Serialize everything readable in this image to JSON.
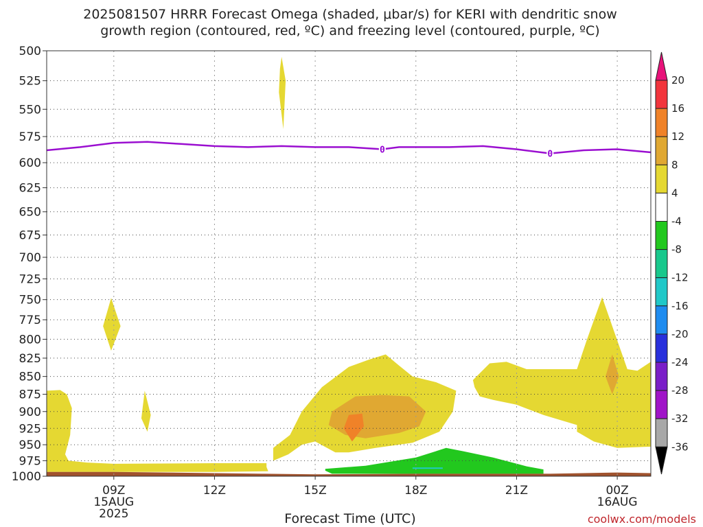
{
  "title": {
    "line1": "2025081507 HRRR Forecast Omega (shaded, μbar/s) for KERI with dendritic snow",
    "line2": "growth region (contoured, red, ºC) and freezing level (contoured, purple, ºC)"
  },
  "credit": "coolwx.com/models",
  "colors": {
    "freezing_level": "#9a0ed0",
    "surface": "#a0522d",
    "omega_4_8": "#e5d832",
    "omega_8_12": "#e0a832",
    "omega_12_16": "#f08228",
    "omega_neg_4_8": "#22c81e",
    "omega_neg_12_16": "#20c8c8"
  },
  "chart_data": {
    "type": "heatmap",
    "title": "2025081507 HRRR Forecast Omega (shaded, μbar/s) for KERI with dendritic snow growth region (contoured, red, ºC) and freezing level (contoured, purple, ºC)",
    "xlabel": "Forecast Time (UTC)",
    "ylabel": "",
    "y_axis": {
      "scale": "pressure (hPa), decreasing upward",
      "ylim": [
        1000,
        500
      ],
      "tick_labels": [
        "500",
        "525",
        "550",
        "575",
        "600",
        "625",
        "650",
        "675",
        "700",
        "725",
        "750",
        "775",
        "800",
        "825",
        "850",
        "875",
        "900",
        "925",
        "950",
        "975",
        "1000"
      ]
    },
    "x_axis": {
      "xlim": [
        "07Z 15AUG",
        "01Z 16AUG"
      ],
      "ticks": [
        {
          "hour": 9,
          "label": "09Z",
          "sublabel1": "15AUG",
          "sublabel2": "2025"
        },
        {
          "hour": 12,
          "label": "12Z",
          "sublabel1": "",
          "sublabel2": ""
        },
        {
          "hour": 15,
          "label": "15Z",
          "sublabel1": "",
          "sublabel2": ""
        },
        {
          "hour": 18,
          "label": "18Z",
          "sublabel1": "",
          "sublabel2": ""
        },
        {
          "hour": 21,
          "label": "21Z",
          "sublabel1": "",
          "sublabel2": ""
        },
        {
          "hour": 24,
          "label": "00Z",
          "sublabel1": "16AUG",
          "sublabel2": ""
        }
      ]
    },
    "grid": true,
    "colorbar": {
      "position": "right",
      "labels": [
        "20",
        "16",
        "12",
        "8",
        "4",
        "-4",
        "-8",
        "-12",
        "-16",
        "-20",
        "-24",
        "-28",
        "-32",
        "-36"
      ],
      "bins": [
        {
          "color": "#e8127a"
        },
        {
          "color": "#f2353c"
        },
        {
          "color": "#f08228"
        },
        {
          "color": "#e0a832"
        },
        {
          "color": "#e5d832"
        },
        {
          "color": "#ffffff"
        },
        {
          "color": "#22c81e"
        },
        {
          "color": "#18c88c"
        },
        {
          "color": "#20c8c8"
        },
        {
          "color": "#1e8cf0"
        },
        {
          "color": "#2830dc"
        },
        {
          "color": "#7a1ec8"
        },
        {
          "color": "#a014c8"
        },
        {
          "color": "#a8a8a8"
        },
        {
          "color": "#000000"
        }
      ]
    },
    "freezing_level": {
      "contour_label": "0",
      "points": [
        {
          "hour": 7.0,
          "p": 588
        },
        {
          "hour": 8.0,
          "p": 585
        },
        {
          "hour": 9.0,
          "p": 581
        },
        {
          "hour": 10.0,
          "p": 580
        },
        {
          "hour": 11.0,
          "p": 582
        },
        {
          "hour": 12.0,
          "p": 584
        },
        {
          "hour": 13.0,
          "p": 585
        },
        {
          "hour": 14.0,
          "p": 584
        },
        {
          "hour": 15.0,
          "p": 585
        },
        {
          "hour": 16.0,
          "p": 585
        },
        {
          "hour": 17.0,
          "p": 587
        },
        {
          "hour": 17.5,
          "p": 585
        },
        {
          "hour": 18.0,
          "p": 585
        },
        {
          "hour": 19.0,
          "p": 585
        },
        {
          "hour": 20.0,
          "p": 584
        },
        {
          "hour": 21.0,
          "p": 587
        },
        {
          "hour": 22.0,
          "p": 591
        },
        {
          "hour": 23.0,
          "p": 588
        },
        {
          "hour": 24.0,
          "p": 587
        },
        {
          "hour": 25.0,
          "p": 590
        }
      ],
      "label_points": [
        {
          "hour": 17.0,
          "p": 587
        },
        {
          "hour": 22.0,
          "p": 591
        }
      ]
    },
    "surface": {
      "points": [
        {
          "hour": 7.0,
          "p": 993
        },
        {
          "hour": 9.0,
          "p": 993
        },
        {
          "hour": 12.0,
          "p": 995
        },
        {
          "hour": 13.5,
          "p": 996
        },
        {
          "hour": 15.0,
          "p": 997
        },
        {
          "hour": 18.0,
          "p": 996
        },
        {
          "hour": 22.0,
          "p": 996
        },
        {
          "hour": 24.0,
          "p": 994
        },
        {
          "hour": 25.0,
          "p": 995
        }
      ]
    },
    "omega_regions": [
      {
        "bin": "4 to 8",
        "color": "#e5d832",
        "points": [
          {
            "hour": 7.0,
            "p": 870
          },
          {
            "hour": 7.4,
            "p": 869
          },
          {
            "hour": 7.6,
            "p": 875
          },
          {
            "hour": 7.75,
            "p": 895
          },
          {
            "hour": 7.7,
            "p": 935
          },
          {
            "hour": 7.55,
            "p": 965
          },
          {
            "hour": 7.65,
            "p": 975
          },
          {
            "hour": 8.2,
            "p": 978
          },
          {
            "hour": 9.0,
            "p": 980
          },
          {
            "hour": 12.0,
            "p": 979
          },
          {
            "hour": 13.55,
            "p": 979
          },
          {
            "hour": 13.55,
            "p": 985
          },
          {
            "hour": 13.6,
            "p": 992
          },
          {
            "hour": 12.0,
            "p": 993
          },
          {
            "hour": 7.0,
            "p": 993
          }
        ]
      },
      {
        "bin": "4 to 8",
        "color": "#e5d832",
        "points": [
          {
            "hour": 14.0,
            "p": 505
          },
          {
            "hour": 14.12,
            "p": 525
          },
          {
            "hour": 14.05,
            "p": 568
          },
          {
            "hour": 13.92,
            "p": 535
          },
          {
            "hour": 13.95,
            "p": 515
          }
        ]
      },
      {
        "bin": "4 to 8",
        "color": "#e5d832",
        "points": [
          {
            "hour": 8.92,
            "p": 748
          },
          {
            "hour": 9.2,
            "p": 783
          },
          {
            "hour": 8.92,
            "p": 815
          },
          {
            "hour": 8.68,
            "p": 783
          }
        ]
      },
      {
        "bin": "4 to 8",
        "color": "#e5d832",
        "points": [
          {
            "hour": 9.92,
            "p": 870
          },
          {
            "hour": 10.1,
            "p": 905
          },
          {
            "hour": 10.0,
            "p": 930
          },
          {
            "hour": 9.82,
            "p": 910
          }
        ]
      },
      {
        "bin": "4 to 8",
        "color": "#e5d832",
        "points": [
          {
            "hour": 13.75,
            "p": 975
          },
          {
            "hour": 13.75,
            "p": 955
          },
          {
            "hour": 14.25,
            "p": 935
          },
          {
            "hour": 14.6,
            "p": 900
          },
          {
            "hour": 15.2,
            "p": 865
          },
          {
            "hour": 16.0,
            "p": 837
          },
          {
            "hour": 16.6,
            "p": 827
          },
          {
            "hour": 17.1,
            "p": 820
          },
          {
            "hour": 17.5,
            "p": 835
          },
          {
            "hour": 17.9,
            "p": 850
          },
          {
            "hour": 18.6,
            "p": 858
          },
          {
            "hour": 19.2,
            "p": 870
          },
          {
            "hour": 19.1,
            "p": 900
          },
          {
            "hour": 18.7,
            "p": 930
          },
          {
            "hour": 17.9,
            "p": 947
          },
          {
            "hour": 16.8,
            "p": 955
          },
          {
            "hour": 16.0,
            "p": 962
          },
          {
            "hour": 15.6,
            "p": 962
          },
          {
            "hour": 15.0,
            "p": 945
          },
          {
            "hour": 14.6,
            "p": 950
          },
          {
            "hour": 14.2,
            "p": 965
          }
        ]
      },
      {
        "bin": "4 to 8",
        "color": "#e5d832",
        "points": [
          {
            "hour": 19.7,
            "p": 855
          },
          {
            "hour": 20.2,
            "p": 832
          },
          {
            "hour": 20.7,
            "p": 830
          },
          {
            "hour": 21.3,
            "p": 840
          },
          {
            "hour": 22.2,
            "p": 840
          },
          {
            "hour": 22.8,
            "p": 840
          },
          {
            "hour": 23.1,
            "p": 800
          },
          {
            "hour": 23.55,
            "p": 747
          },
          {
            "hour": 23.85,
            "p": 783
          },
          {
            "hour": 24.3,
            "p": 840
          },
          {
            "hour": 24.6,
            "p": 842
          },
          {
            "hour": 25.0,
            "p": 830
          },
          {
            "hour": 25.0,
            "p": 953
          },
          {
            "hour": 24.0,
            "p": 955
          },
          {
            "hour": 23.3,
            "p": 945
          },
          {
            "hour": 22.8,
            "p": 930
          },
          {
            "hour": 22.8,
            "p": 920
          },
          {
            "hour": 21.8,
            "p": 905
          },
          {
            "hour": 21.0,
            "p": 890
          },
          {
            "hour": 20.3,
            "p": 883
          },
          {
            "hour": 19.9,
            "p": 878
          },
          {
            "hour": 19.75,
            "p": 865
          }
        ]
      },
      {
        "bin": "8 to 12",
        "color": "#e0a832",
        "points": [
          {
            "hour": 15.5,
            "p": 900
          },
          {
            "hour": 16.2,
            "p": 878
          },
          {
            "hour": 17.0,
            "p": 876
          },
          {
            "hour": 17.8,
            "p": 878
          },
          {
            "hour": 18.3,
            "p": 900
          },
          {
            "hour": 18.1,
            "p": 922
          },
          {
            "hour": 17.5,
            "p": 932
          },
          {
            "hour": 16.5,
            "p": 940
          },
          {
            "hour": 15.9,
            "p": 935
          },
          {
            "hour": 15.4,
            "p": 920
          }
        ]
      },
      {
        "bin": "8 to 12",
        "color": "#e0a832",
        "points": [
          {
            "hour": 23.85,
            "p": 820
          },
          {
            "hour": 24.05,
            "p": 850
          },
          {
            "hour": 23.85,
            "p": 875
          },
          {
            "hour": 23.65,
            "p": 850
          }
        ]
      },
      {
        "bin": "12 to 16",
        "color": "#f08228",
        "points": [
          {
            "hour": 16.0,
            "p": 905
          },
          {
            "hour": 16.4,
            "p": 903
          },
          {
            "hour": 16.45,
            "p": 922
          },
          {
            "hour": 16.1,
            "p": 945
          },
          {
            "hour": 15.85,
            "p": 925
          }
        ]
      },
      {
        "bin": "-4 to -8",
        "color": "#22c81e",
        "points": [
          {
            "hour": 15.3,
            "p": 988
          },
          {
            "hour": 16.5,
            "p": 983
          },
          {
            "hour": 18.0,
            "p": 970
          },
          {
            "hour": 18.9,
            "p": 955
          },
          {
            "hour": 19.4,
            "p": 960
          },
          {
            "hour": 20.3,
            "p": 970
          },
          {
            "hour": 21.3,
            "p": 984
          },
          {
            "hour": 21.8,
            "p": 989
          },
          {
            "hour": 21.8,
            "p": 996
          },
          {
            "hour": 15.5,
            "p": 996
          },
          {
            "hour": 15.3,
            "p": 991
          }
        ]
      },
      {
        "bin": "-12 to -16",
        "color": "#20c8c8",
        "points": [
          {
            "hour": 17.9,
            "p": 987
          },
          {
            "hour": 18.8,
            "p": 987
          }
        ]
      }
    ]
  }
}
